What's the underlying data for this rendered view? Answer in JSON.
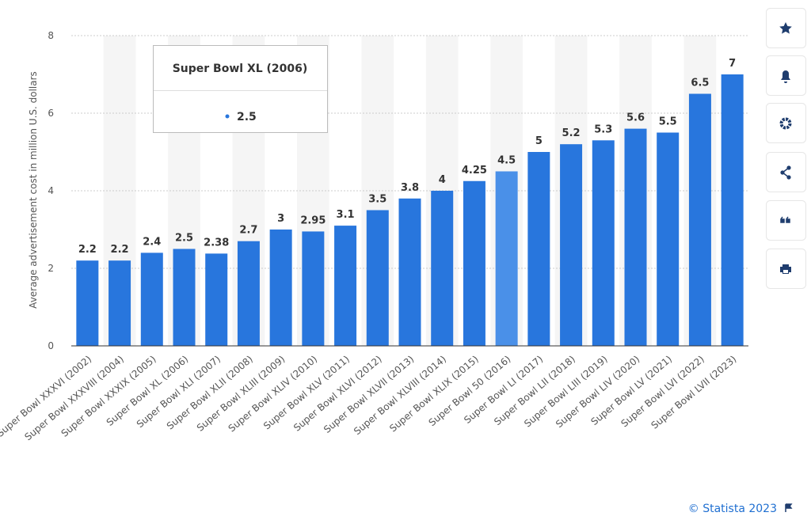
{
  "chart_data": {
    "type": "bar",
    "y_label": "Average advertisement cost in million U.S. dollars",
    "categories": [
      "Super Bowl XXXVI (2002)",
      "Super Bowl XXXVIII (2004)",
      "Super Bowl XXXIX (2005)",
      "Super Bowl XL (2006)",
      "Super Bowl XLI (2007)",
      "Super Bowl XLII (2008)",
      "Super Bowl XLIII (2009)",
      "Super Bowl XLIV (2010)",
      "Super Bowl XLV (2011)",
      "Super Bowl XLVI (2012)",
      "Super Bowl XLVII (2013)",
      "Super Bowl XLVIII (2014)",
      "Super Bowl XLIX (2015)",
      "Super Bowl 50 (2016)",
      "Super Bowl LI (2017)",
      "Super Bowl LII (2018)",
      "Super Bowl LIII (2019)",
      "Super Bowl LIV (2020)",
      "Super Bowl LV (2021)",
      "Super Bowl LVI (2022)",
      "Super Bowl LVII (2023)"
    ],
    "values": [
      2.2,
      2.2,
      2.4,
      2.5,
      2.38,
      2.7,
      3,
      2.95,
      3.1,
      3.5,
      3.8,
      4,
      4.25,
      4.5,
      5,
      5.2,
      5.3,
      5.6,
      5.5,
      6.5,
      7
    ],
    "colors": [
      "#2876dd",
      "#2876dd",
      "#2876dd",
      "#2876dd",
      "#2876dd",
      "#2876dd",
      "#2876dd",
      "#2876dd",
      "#2876dd",
      "#2876dd",
      "#2876dd",
      "#2876dd",
      "#2876dd",
      "#4a90e8",
      "#2876dd",
      "#2876dd",
      "#2876dd",
      "#2876dd",
      "#2876dd",
      "#2876dd",
      "#2876dd"
    ],
    "ylim": [
      0,
      8
    ],
    "yticks": [
      0,
      2,
      4,
      6,
      8
    ],
    "grid": true,
    "tooltip": {
      "title": "Super Bowl XL (2006)",
      "value": 2.5
    }
  },
  "footer": "© Statista 2023"
}
